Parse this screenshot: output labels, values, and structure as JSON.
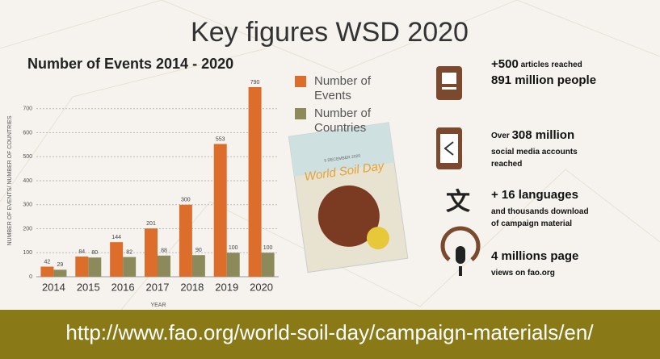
{
  "title": "Key figures WSD 2020",
  "chart_data": {
    "type": "bar",
    "title": "Number of Events 2014 - 2020",
    "categories": [
      "2014",
      "2015",
      "2016",
      "2017",
      "2018",
      "2019",
      "2020"
    ],
    "series": [
      {
        "name": "Number of Events",
        "color": "#dc6d2a",
        "values": [
          42,
          84,
          144,
          201,
          300,
          553,
          790
        ]
      },
      {
        "name": "Number of Countries",
        "color": "#8c8a5a",
        "values": [
          29,
          80,
          82,
          88,
          90,
          100,
          100
        ]
      }
    ],
    "ylim": [
      0,
      800
    ],
    "yticks": [
      0,
      100,
      200,
      300,
      400,
      500,
      600,
      700
    ],
    "grid": true,
    "x_label": "YEAR",
    "y_label": "NUMBER OF EVENTS/ NUMBER OF COUNTRIES"
  },
  "booklet": {
    "title": "World Soil Day",
    "date": "5 DECEMBER 2020"
  },
  "stats": [
    {
      "lines": [
        [
          {
            "text": "+500",
            "size": "big"
          },
          {
            "text": " articles reached",
            "size": "small"
          }
        ],
        [
          {
            "text": "891 million people",
            "size": "big"
          }
        ]
      ]
    },
    {
      "lines": [
        [
          {
            "text": "Over ",
            "size": "small"
          },
          {
            "text": "308 million",
            "size": "big"
          }
        ],
        [
          {
            "text": "social media accounts",
            "size": "small"
          }
        ],
        [
          {
            "text": "reached",
            "size": "small"
          }
        ]
      ]
    },
    {
      "lines": [
        [
          {
            "text": "+ 16 languages",
            "size": "big"
          }
        ],
        [
          {
            "text": "and thousands download",
            "size": "small"
          }
        ],
        [
          {
            "text": "of campaign material",
            "size": "small"
          }
        ]
      ]
    },
    {
      "lines": [
        [
          {
            "text": "4 millions page",
            "size": "big"
          }
        ],
        [
          {
            "text": "views on fao.org",
            "size": "small"
          }
        ]
      ]
    }
  ],
  "footer": "http://www.fao.org/world-soil-day/campaign-materials/en/"
}
